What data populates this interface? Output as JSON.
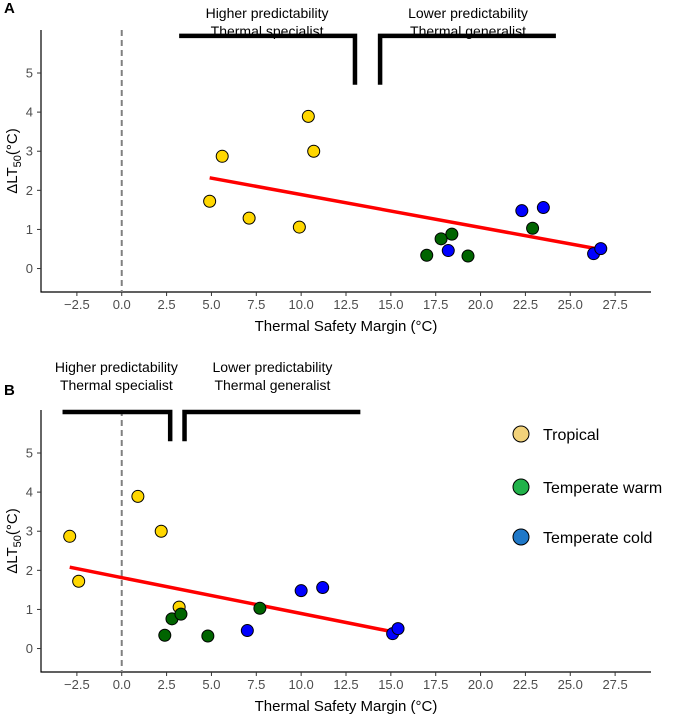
{
  "colors": {
    "Tropical": "#FFD700",
    "Temperate warm": "#006400",
    "Temperate cold": "#0000FF",
    "legend_Tropical": "#F2D27A",
    "legend_Temperate warm": "#21B24A",
    "legend_Temperate cold": "#1F78C8",
    "fit": "#FF0000",
    "bracket": "#000000",
    "dashed": "#808080"
  },
  "legend": {
    "items": [
      {
        "label": "Tropical"
      },
      {
        "label": "Temperate warm"
      },
      {
        "label": "Temperate cold"
      }
    ]
  },
  "chart_data": [
    {
      "panel": "A",
      "type": "scatter",
      "xlabel": "Thermal Safety Margin (°C)",
      "ylabel_main": "ΔLT",
      "ylabel_sub": "50",
      "ylabel_unit": "(°C)",
      "xlim": [
        -4.5,
        29.5
      ],
      "ylim": [
        -0.6,
        6.1
      ],
      "x_ticks": [
        -2.5,
        0.0,
        2.5,
        5.0,
        7.5,
        10.0,
        12.5,
        15.0,
        17.5,
        20.0,
        22.5,
        25.0,
        27.5
      ],
      "x_tick_labels": [
        "−2.5",
        "0.0",
        "2.5",
        "5.0",
        "7.5",
        "10.0",
        "12.5",
        "15.0",
        "17.5",
        "20.0",
        "22.5",
        "25.0",
        "27.5"
      ],
      "y_ticks": [
        0,
        1,
        2,
        3,
        4,
        5
      ],
      "y_tick_labels": [
        "0",
        "1",
        "2",
        "3",
        "4",
        "5"
      ],
      "vline_x": 0,
      "fit_line": {
        "x": [
          4.9,
          26.9
        ],
        "y": [
          2.32,
          0.47
        ]
      },
      "brackets": [
        {
          "label_lines": [
            "Higher predictability",
            "Thermal specialist"
          ],
          "x_start": 3.2,
          "x_end": 13.0,
          "y_top": 5.95,
          "y_bottom": 4.7,
          "vertical_side": "right"
        },
        {
          "label_lines": [
            "Lower predictability",
            "Thermal generalist"
          ],
          "x_start": 14.4,
          "x_end": 24.2,
          "y_top": 5.95,
          "y_bottom": 4.7,
          "vertical_side": "left"
        }
      ],
      "series": [
        {
          "name": "Tropical",
          "points": [
            [
              4.9,
              1.72
            ],
            [
              5.6,
              2.87
            ],
            [
              7.1,
              1.29
            ],
            [
              9.9,
              1.06
            ],
            [
              10.4,
              3.89
            ],
            [
              10.7,
              3.0
            ]
          ]
        },
        {
          "name": "Temperate warm",
          "points": [
            [
              17.0,
              0.34
            ],
            [
              17.8,
              0.76
            ],
            [
              18.4,
              0.88
            ],
            [
              19.3,
              0.32
            ],
            [
              22.9,
              1.03
            ]
          ]
        },
        {
          "name": "Temperate cold",
          "points": [
            [
              18.2,
              0.46
            ],
            [
              22.3,
              1.48
            ],
            [
              23.5,
              1.56
            ],
            [
              26.3,
              0.38
            ],
            [
              26.7,
              0.51
            ]
          ]
        }
      ]
    },
    {
      "panel": "B",
      "type": "scatter",
      "xlabel": "Thermal Safety Margin (°C)",
      "ylabel_main": "ΔLT",
      "ylabel_sub": "50",
      "ylabel_unit": "(°C)",
      "xlim": [
        -4.5,
        29.5
      ],
      "ylim": [
        -0.6,
        6.1
      ],
      "x_ticks": [
        -2.5,
        0.0,
        2.5,
        5.0,
        7.5,
        10.0,
        12.5,
        15.0,
        17.5,
        20.0,
        22.5,
        25.0,
        27.5
      ],
      "x_tick_labels": [
        "−2.5",
        "0.0",
        "2.5",
        "5.0",
        "7.5",
        "10.0",
        "12.5",
        "15.0",
        "17.5",
        "20.0",
        "22.5",
        "25.0",
        "27.5"
      ],
      "y_ticks": [
        0,
        1,
        2,
        3,
        4,
        5
      ],
      "y_tick_labels": [
        "0",
        "1",
        "2",
        "3",
        "4",
        "5"
      ],
      "vline_x": 0,
      "fit_line": {
        "x": [
          -2.9,
          15.3
        ],
        "y": [
          2.08,
          0.41
        ]
      },
      "brackets": [
        {
          "label_lines": [
            "Higher predictability",
            "Thermal specialist"
          ],
          "x_start": -3.3,
          "x_end": 2.7,
          "y_top": 6.05,
          "y_bottom": 5.3,
          "vertical_side": "right"
        },
        {
          "label_lines": [
            "Lower predictability",
            "Thermal generalist"
          ],
          "x_start": 3.5,
          "x_end": 13.3,
          "y_top": 6.05,
          "y_bottom": 5.3,
          "vertical_side": "left"
        }
      ],
      "series": [
        {
          "name": "Tropical",
          "points": [
            [
              -2.9,
              2.87
            ],
            [
              -2.4,
              1.72
            ],
            [
              0.9,
              3.89
            ],
            [
              2.2,
              3.0
            ],
            [
              3.2,
              1.06
            ]
          ]
        },
        {
          "name": "Temperate warm",
          "points": [
            [
              2.4,
              0.34
            ],
            [
              2.8,
              0.76
            ],
            [
              3.3,
              0.88
            ],
            [
              4.8,
              0.32
            ],
            [
              7.7,
              1.03
            ]
          ]
        },
        {
          "name": "Temperate cold",
          "points": [
            [
              7.0,
              0.46
            ],
            [
              10.0,
              1.48
            ],
            [
              11.2,
              1.56
            ],
            [
              15.1,
              0.38
            ],
            [
              15.4,
              0.51
            ]
          ]
        }
      ]
    }
  ]
}
